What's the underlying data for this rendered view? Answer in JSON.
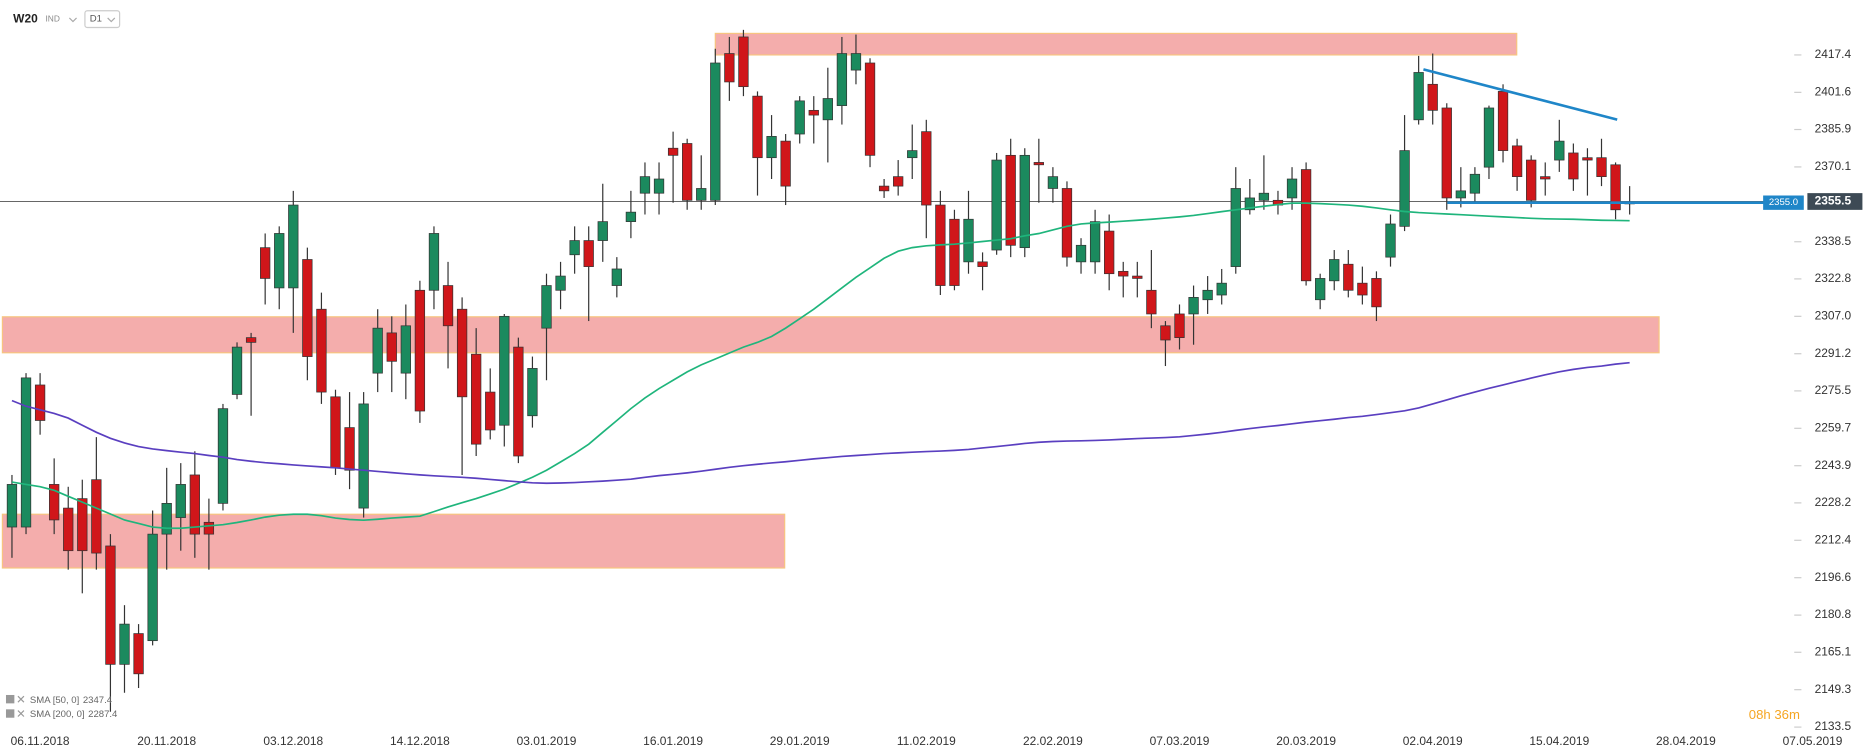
{
  "chart_data": {
    "type": "candlestick",
    "title": "W20",
    "instrument_type": "IND",
    "interval": "D1",
    "countdown": "08h 36m",
    "up_color": "#1b8a5e",
    "down_color": "#d0161a",
    "categories": [
      null,
      null,
      "06.11.2018",
      null,
      null,
      null,
      null,
      null,
      null,
      null,
      null,
      "20.11.2018",
      null,
      null,
      null,
      null,
      null,
      null,
      null,
      null,
      "03.12.2018",
      null,
      null,
      null,
      null,
      null,
      null,
      null,
      null,
      "14.12.2018",
      null,
      null,
      null,
      null,
      null,
      null,
      null,
      null,
      "03.01.2019",
      null,
      null,
      null,
      null,
      null,
      null,
      null,
      null,
      "16.01.2019",
      null,
      null,
      null,
      null,
      null,
      null,
      null,
      null,
      "29.01.2019",
      null,
      null,
      null,
      null,
      null,
      null,
      null,
      null,
      "11.02.2019",
      null,
      null,
      null,
      null,
      null,
      null,
      null,
      null,
      "22.02.2019",
      null,
      null,
      null,
      null,
      null,
      null,
      null,
      null,
      "07.03.2019",
      null,
      null,
      null,
      null,
      null,
      null,
      null,
      null,
      "20.03.2019",
      null,
      null,
      null,
      null,
      null,
      null,
      null,
      null,
      "02.04.2019",
      null,
      null,
      null,
      null,
      null,
      null,
      null,
      null,
      "15.04.2019",
      null,
      null,
      null,
      null,
      null,
      null,
      null,
      null,
      "28.04.2019",
      null,
      null,
      null,
      null,
      null,
      null,
      null,
      null,
      "07.05.2019"
    ],
    "open": [
      2218,
      2218,
      2278,
      2236,
      2226,
      2230,
      2238,
      2210,
      2160,
      2173,
      2170,
      2215,
      2222,
      2240,
      2220,
      2228,
      2274,
      2298,
      2336,
      2319,
      2319,
      2331,
      2310,
      2273,
      2260,
      2226,
      2283,
      2300,
      2283,
      2318,
      2318,
      2320,
      2310,
      2291,
      2275,
      2261,
      2294,
      2265,
      2302,
      2318,
      2333,
      2339,
      2339,
      2320,
      2347,
      2359,
      2359,
      2378,
      2380,
      2356,
      2356,
      2418,
      2425,
      2400,
      2374,
      2381,
      2384,
      2394,
      2390,
      2396,
      2411,
      2414,
      2362,
      2366,
      2374,
      2385,
      2354,
      2348,
      2330,
      2330,
      2335,
      2375,
      2336,
      2372,
      2361,
      2361,
      2330,
      2330,
      2343,
      2326,
      2324,
      2318,
      2303,
      2308,
      2308,
      2314,
      2316,
      2328,
      2352,
      2356,
      2356,
      2357,
      2369,
      2314,
      2322,
      2329,
      2321,
      2323,
      2332,
      2345,
      2390,
      2405,
      2395,
      2357,
      2359,
      2370,
      2402,
      2379,
      2373,
      2366,
      2373,
      2376,
      2374,
      2374,
      2371,
      2355,
      null,
      null,
      null,
      null,
      null,
      null,
      null,
      null,
      null,
      null,
      null,
      null,
      null
    ],
    "high": [
      2240,
      2283,
      2283,
      2247,
      2235,
      2238,
      2256,
      2215,
      2185,
      2177,
      2225,
      2243,
      2245,
      2250,
      2230,
      2270,
      2296,
      2300,
      2342,
      2345,
      2360,
      2336,
      2317,
      2276,
      2275,
      2275,
      2310,
      2307,
      2312,
      2322,
      2345,
      2330,
      2315,
      2302,
      2285,
      2308,
      2298,
      2290,
      2325,
      2330,
      2345,
      2345,
      2363,
      2332,
      2360,
      2372,
      2372,
      2385,
      2382,
      2375,
      2420,
      2425,
      2428,
      2402,
      2392,
      2384,
      2400,
      2400,
      2412,
      2425,
      2426,
      2416,
      2365,
      2373,
      2388,
      2390,
      2360,
      2352,
      2360,
      2334,
      2376,
      2382,
      2378,
      2382,
      2370,
      2364,
      2340,
      2352,
      2350,
      2330,
      2330,
      2335,
      2305,
      2312,
      2320,
      2324,
      2327,
      2370,
      2365,
      2375,
      2360,
      2370,
      2372,
      2325,
      2335,
      2335,
      2328,
      2326,
      2350,
      2392,
      2417,
      2418,
      2397,
      2370,
      2370,
      2396,
      2405,
      2382,
      2375,
      2372,
      2390,
      2380,
      2378,
      2382,
      2372,
      2362,
      null,
      null,
      null,
      null,
      null,
      null,
      null,
      null,
      null,
      null,
      null,
      null,
      null
    ],
    "low": [
      2205,
      2215,
      2257,
      2215,
      2200,
      2190,
      2200,
      2140,
      2148,
      2150,
      2168,
      2200,
      2208,
      2205,
      2200,
      2225,
      2272,
      2265,
      2312,
      2310,
      2300,
      2280,
      2270,
      2240,
      2234,
      2222,
      2275,
      2275,
      2272,
      2262,
      2310,
      2285,
      2240,
      2248,
      2255,
      2252,
      2245,
      2260,
      2280,
      2310,
      2325,
      2305,
      2330,
      2315,
      2340,
      2350,
      2350,
      2355,
      2352,
      2352,
      2354,
      2398,
      2400,
      2358,
      2365,
      2354,
      2380,
      2380,
      2372,
      2388,
      2405,
      2370,
      2357,
      2358,
      2365,
      2340,
      2316,
      2318,
      2325,
      2318,
      2333,
      2332,
      2332,
      2355,
      2355,
      2328,
      2325,
      2325,
      2318,
      2315,
      2315,
      2302,
      2286,
      2293,
      2295,
      2308,
      2312,
      2325,
      2350,
      2352,
      2350,
      2352,
      2320,
      2310,
      2318,
      2315,
      2312,
      2305,
      2328,
      2343,
      2388,
      2388,
      2352,
      2353,
      2355,
      2365,
      2372,
      2360,
      2353,
      2358,
      2368,
      2360,
      2358,
      2362,
      2348,
      2350,
      null,
      null,
      null,
      null,
      null,
      null,
      null,
      null,
      null,
      null,
      null,
      null,
      null
    ],
    "close": [
      2236,
      2281,
      2263,
      2221,
      2208,
      2208,
      2207,
      2160,
      2177,
      2156,
      2215,
      2228,
      2236,
      2215,
      2215,
      2268,
      2294,
      2296,
      2323,
      2342,
      2354,
      2290,
      2275,
      2243,
      2242,
      2270,
      2302,
      2288,
      2303,
      2267,
      2342,
      2303,
      2273,
      2253,
      2259,
      2307,
      2248,
      2285,
      2320,
      2324,
      2339,
      2328,
      2347,
      2327,
      2351,
      2366,
      2365,
      2375,
      2356,
      2361,
      2414,
      2406,
      2404,
      2374,
      2383,
      2362,
      2398,
      2392,
      2399,
      2418,
      2418,
      2375,
      2360,
      2362,
      2377,
      2354,
      2320,
      2320,
      2348,
      2328,
      2373,
      2337,
      2375,
      2371,
      2366,
      2332,
      2337,
      2347,
      2325,
      2324,
      2323,
      2308,
      2297,
      2298,
      2315,
      2318,
      2321,
      2361,
      2357,
      2359,
      2354,
      2365,
      2322,
      2323,
      2331,
      2318,
      2316,
      2311,
      2346,
      2377,
      2410,
      2394,
      2357,
      2360,
      2367,
      2395,
      2377,
      2366,
      2356,
      2365,
      2381,
      2365,
      2373,
      2366,
      2352,
      2355,
      null,
      null,
      null,
      null,
      null,
      null,
      null,
      null,
      null,
      null,
      null,
      null,
      null
    ],
    "series": [
      {
        "name": "SMA [50, 0]",
        "color": "#1fb57c",
        "values": [
          2237.0,
          2236,
          2235,
          2233.5,
          2231,
          2228.5,
          2226,
          2223.5,
          2221,
          2219.5,
          2218,
          2217.5,
          2217.5,
          2218,
          2218.5,
          2219,
          2219.9,
          2221,
          2222.2,
          2223,
          2223.4,
          2223.4,
          2222.8,
          2221.8,
          2221.2,
          2220.9,
          2221.3,
          2221.8,
          2222.2,
          2222.6,
          2224.5,
          2226.5,
          2228.3,
          2230,
          2232,
          2234,
          2236.5,
          2239,
          2242,
          2245.5,
          2249,
          2253,
          2258,
          2263,
          2268,
          2272.5,
          2276.5,
          2280,
          2283.5,
          2286.5,
          2289,
          2291.5,
          2294,
          2296,
          2298.5,
          2302,
          2306,
          2310,
          2314.5,
          2319,
          2323.5,
          2327.5,
          2331.5,
          2334.5,
          2336,
          2336.8,
          2337.2,
          2337.5,
          2338,
          2338.6,
          2339.2,
          2339.8,
          2341,
          2342,
          2343.5,
          2345,
          2346,
          2346.5,
          2346.8,
          2347.2,
          2347.6,
          2348,
          2348.5,
          2349,
          2349.6,
          2350.4,
          2351.2,
          2352,
          2352.8,
          2353.5,
          2354.2,
          2354.8,
          2354.8,
          2354.6,
          2354.3,
          2354,
          2353.5,
          2352.8,
          2352,
          2351.3,
          2350.8,
          2350.5,
          2350.2,
          2349.9,
          2349.6,
          2349.3,
          2349,
          2348.7,
          2348.4,
          2348.2,
          2348.1,
          2348,
          2347.8,
          2347.6,
          2347.5,
          2347.4,
          null,
          null,
          null,
          null,
          null,
          null,
          null,
          null,
          null,
          null,
          null,
          null,
          null
        ]
      },
      {
        "name": "SMA [200, 0]",
        "color": "#5a3fc0",
        "values": [
          2271.4,
          2269,
          2267.5,
          2266,
          2264,
          2261,
          2258,
          2255.5,
          2253.5,
          2252,
          2251,
          2250.3,
          2249.6,
          2249,
          2248.2,
          2247.5,
          2246.5,
          2245.8,
          2245.2,
          2244.7,
          2244.2,
          2243.8,
          2243.4,
          2243,
          2242.5,
          2242,
          2241.5,
          2241,
          2240.5,
          2240,
          2239.6,
          2239.3,
          2239,
          2238.6,
          2238.1,
          2237.6,
          2237.1,
          2236.7,
          2236.5,
          2236.6,
          2236.8,
          2237.1,
          2237.4,
          2237.8,
          2238.2,
          2239.0,
          2239.7,
          2240.3,
          2240.9,
          2241.6,
          2242.4,
          2243.2,
          2243.9,
          2244.5,
          2245.1,
          2245.6,
          2246.2,
          2246.8,
          2247.3,
          2247.8,
          2248.2,
          2248.6,
          2249,
          2249.3,
          2249.6,
          2249.9,
          2250.1,
          2250.4,
          2250.8,
          2251.4,
          2252,
          2252.6,
          2253.3,
          2253.8,
          2254.1,
          2254.3,
          2254.4,
          2254.6,
          2254.8,
          2255.1,
          2255.4,
          2255.6,
          2255.8,
          2256.1,
          2256.7,
          2257.3,
          2258.0,
          2258.8,
          2259.6,
          2260.3,
          2260.9,
          2261.6,
          2262.3,
          2262.9,
          2263.5,
          2264.2,
          2264.8,
          2265.5,
          2266.3,
          2267.1,
          2268.3,
          2270.0,
          2271.7,
          2273.4,
          2275.0,
          2276.6,
          2278.0,
          2279.5,
          2280.9,
          2282.3,
          2283.6,
          2284.6,
          2285.4,
          2286.0,
          2286.8,
          2287.4,
          null,
          null,
          null,
          null,
          null,
          null,
          null,
          null,
          null,
          null,
          null,
          null,
          null
        ]
      }
    ],
    "zones": [
      {
        "from": 2417.4,
        "to": 2426.5,
        "color": "#f4a9a8"
      },
      {
        "from": 2291.6,
        "to": 2306.8,
        "color": "#f4a9a8"
      },
      {
        "from": 2200.7,
        "to": 2223.4,
        "color": "#f4a9a8"
      }
    ],
    "price_line": 2355.5,
    "alert_line": {
      "value": 2355,
      "label": "2355.0"
    },
    "ylim": [
      2131.4,
      2440.6
    ],
    "yticks": [
      2417.4,
      2401.6,
      2385.9,
      2370.1,
      2338.5,
      2322.8,
      {
        "value": 2307,
        "label": "2307.0"
      },
      2291.2,
      2275.5,
      2259.7,
      2243.9,
      2228.2,
      2212.4,
      2196.6,
      2180.8,
      2165.1,
      2149.3,
      2133.5
    ]
  }
}
